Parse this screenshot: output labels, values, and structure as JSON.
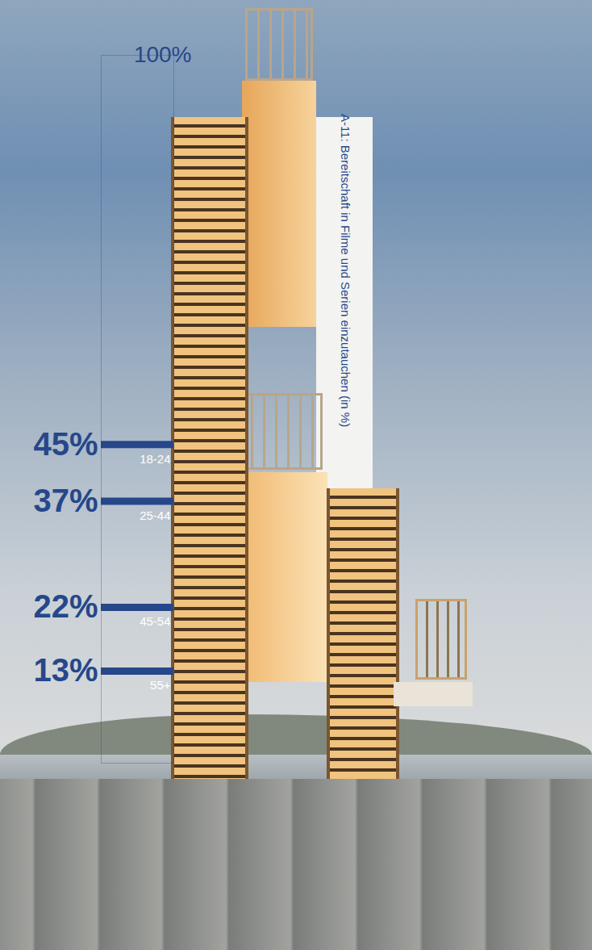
{
  "chart_data": {
    "type": "tick",
    "title": "A-11: Bereitschaft in Filme und Serien einzutauchen (in %)",
    "categories": [
      "18-24",
      "25-44",
      "45-54",
      "55+"
    ],
    "values": [
      45,
      37,
      22,
      13
    ],
    "value_labels": [
      "45%",
      "37%",
      "22%",
      "13%"
    ],
    "data_labels": true,
    "color": "#26478a",
    "ylim": [
      0,
      100
    ],
    "yticks": [
      {
        "value": 100,
        "label": "100%"
      }
    ],
    "grid": false
  }
}
